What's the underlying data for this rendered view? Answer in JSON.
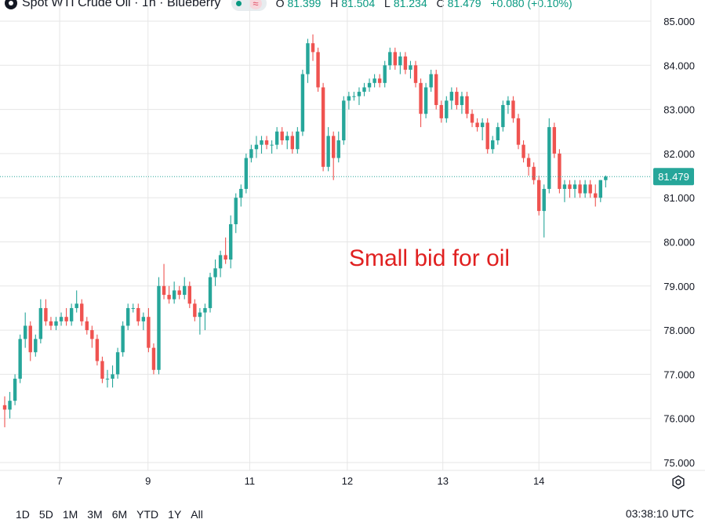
{
  "header": {
    "title": "Spot WTI Crude Oil · 1h · Blueberry",
    "status_icon": "market-open-dot",
    "o_label": "O",
    "o_value": "81.399",
    "h_label": "H",
    "h_value": "81.504",
    "l_label": "L",
    "l_value": "81.234",
    "c_label": "C",
    "c_value": "81.479",
    "change": "+0.080 (+0.10%)"
  },
  "colors": {
    "up": "#26a69a",
    "down": "#ef5350",
    "grid": "#e6e6e6",
    "price_tag": "#26a69a",
    "annotation": "#e02020"
  },
  "chart_data": {
    "type": "candlestick",
    "ylim": [
      74.8,
      85.3
    ],
    "y_ticks": [
      "75.000",
      "76.000",
      "77.000",
      "78.000",
      "79.000",
      "80.000",
      "81.000",
      "82.000",
      "83.000",
      "84.000",
      "85.000"
    ],
    "x_ticks": [
      {
        "label": "7",
        "pos": 10.7
      },
      {
        "label": "9",
        "pos": 27.9
      },
      {
        "label": "11",
        "pos": 47.7
      },
      {
        "label": "12",
        "pos": 66.7
      },
      {
        "label": "13",
        "pos": 85.3
      },
      {
        "label": "14",
        "pos": 104.0
      }
    ],
    "last_price": "81.479",
    "last_price_value": 81.479,
    "annotation": "Small bid for oil",
    "candles": [
      [
        76.3,
        76.5,
        75.8,
        76.2
      ],
      [
        76.2,
        76.6,
        76.0,
        76.4
      ],
      [
        76.4,
        77.0,
        76.3,
        76.9
      ],
      [
        76.9,
        77.9,
        76.8,
        77.8
      ],
      [
        77.8,
        78.4,
        77.6,
        78.1
      ],
      [
        78.1,
        78.2,
        77.3,
        77.5
      ],
      [
        77.5,
        77.9,
        77.4,
        77.8
      ],
      [
        77.8,
        78.7,
        77.7,
        78.5
      ],
      [
        78.5,
        78.7,
        78.1,
        78.2
      ],
      [
        78.2,
        78.3,
        78.0,
        78.1
      ],
      [
        78.1,
        78.3,
        78.0,
        78.2
      ],
      [
        78.2,
        78.4,
        78.1,
        78.3
      ],
      [
        78.3,
        78.5,
        78.1,
        78.2
      ],
      [
        78.2,
        78.6,
        78.1,
        78.5
      ],
      [
        78.5,
        78.9,
        78.4,
        78.6
      ],
      [
        78.6,
        78.7,
        78.1,
        78.2
      ],
      [
        78.2,
        78.3,
        77.9,
        78.0
      ],
      [
        78.0,
        78.1,
        77.6,
        77.8
      ],
      [
        77.8,
        77.9,
        77.2,
        77.3
      ],
      [
        77.3,
        77.4,
        76.8,
        76.9
      ],
      [
        76.9,
        77.1,
        76.7,
        76.9
      ],
      [
        76.9,
        77.2,
        76.7,
        77.0
      ],
      [
        77.0,
        77.6,
        76.9,
        77.5
      ],
      [
        77.5,
        78.2,
        77.4,
        78.1
      ],
      [
        78.1,
        78.6,
        78.0,
        78.5
      ],
      [
        78.5,
        78.6,
        78.4,
        78.5
      ],
      [
        78.5,
        78.6,
        78.1,
        78.2
      ],
      [
        78.2,
        78.4,
        78.0,
        78.3
      ],
      [
        78.3,
        78.5,
        77.5,
        77.6
      ],
      [
        77.6,
        77.7,
        77.0,
        77.1
      ],
      [
        77.1,
        79.2,
        77.0,
        79.0
      ],
      [
        79.0,
        79.5,
        78.7,
        78.8
      ],
      [
        78.8,
        79.0,
        78.6,
        78.7
      ],
      [
        78.7,
        79.1,
        78.6,
        78.9
      ],
      [
        78.9,
        79.0,
        78.7,
        78.8
      ],
      [
        78.8,
        79.2,
        78.7,
        79.0
      ],
      [
        79.0,
        79.1,
        78.5,
        78.6
      ],
      [
        78.6,
        78.7,
        78.2,
        78.3
      ],
      [
        78.3,
        78.5,
        77.9,
        78.4
      ],
      [
        78.4,
        78.6,
        78.0,
        78.5
      ],
      [
        78.5,
        79.3,
        78.4,
        79.2
      ],
      [
        79.2,
        79.6,
        79.0,
        79.4
      ],
      [
        79.4,
        79.8,
        79.2,
        79.7
      ],
      [
        79.7,
        80.1,
        79.5,
        79.6
      ],
      [
        79.6,
        80.6,
        79.4,
        80.4
      ],
      [
        80.4,
        81.1,
        80.2,
        81.0
      ],
      [
        81.0,
        81.3,
        80.8,
        81.2
      ],
      [
        81.2,
        82.0,
        81.1,
        81.9
      ],
      [
        81.9,
        82.2,
        81.8,
        82.1
      ],
      [
        82.1,
        82.4,
        81.9,
        82.2
      ],
      [
        82.2,
        82.4,
        82.0,
        82.3
      ],
      [
        82.3,
        82.4,
        82.1,
        82.2
      ],
      [
        82.2,
        82.3,
        82.0,
        82.2
      ],
      [
        82.2,
        82.6,
        82.1,
        82.5
      ],
      [
        82.5,
        82.6,
        82.2,
        82.3
      ],
      [
        82.3,
        82.5,
        82.1,
        82.4
      ],
      [
        82.4,
        82.5,
        82.0,
        82.1
      ],
      [
        82.1,
        82.6,
        82.0,
        82.5
      ],
      [
        82.5,
        83.9,
        82.4,
        83.8
      ],
      [
        83.8,
        84.6,
        83.6,
        84.5
      ],
      [
        84.5,
        84.7,
        84.1,
        84.3
      ],
      [
        84.3,
        84.4,
        83.4,
        83.5
      ],
      [
        83.5,
        83.6,
        81.6,
        81.7
      ],
      [
        81.7,
        82.6,
        81.6,
        82.4
      ],
      [
        82.4,
        82.5,
        81.4,
        81.9
      ],
      [
        81.9,
        82.5,
        81.8,
        82.3
      ],
      [
        82.3,
        83.3,
        82.2,
        83.2
      ],
      [
        83.2,
        83.4,
        83.0,
        83.3
      ],
      [
        83.3,
        83.4,
        83.2,
        83.3
      ],
      [
        83.3,
        83.5,
        83.1,
        83.4
      ],
      [
        83.4,
        83.6,
        83.3,
        83.5
      ],
      [
        83.5,
        83.7,
        83.4,
        83.6
      ],
      [
        83.6,
        83.8,
        83.5,
        83.7
      ],
      [
        83.7,
        83.8,
        83.5,
        83.6
      ],
      [
        83.6,
        84.1,
        83.5,
        84.0
      ],
      [
        84.0,
        84.4,
        83.9,
        84.3
      ],
      [
        84.3,
        84.4,
        83.9,
        84.0
      ],
      [
        84.0,
        84.3,
        83.8,
        84.2
      ],
      [
        84.2,
        84.3,
        83.8,
        83.9
      ],
      [
        83.9,
        84.1,
        83.7,
        84.0
      ],
      [
        84.0,
        84.1,
        83.5,
        83.6
      ],
      [
        83.6,
        83.7,
        82.6,
        82.9
      ],
      [
        82.9,
        83.6,
        82.8,
        83.5
      ],
      [
        83.5,
        83.9,
        83.4,
        83.8
      ],
      [
        83.8,
        83.9,
        83.0,
        83.1
      ],
      [
        83.1,
        83.2,
        82.7,
        82.8
      ],
      [
        82.8,
        83.3,
        82.7,
        83.2
      ],
      [
        83.2,
        83.5,
        83.0,
        83.4
      ],
      [
        83.4,
        83.5,
        83.0,
        83.1
      ],
      [
        83.1,
        83.4,
        82.9,
        83.3
      ],
      [
        83.3,
        83.4,
        82.8,
        82.9
      ],
      [
        82.9,
        83.0,
        82.6,
        82.7
      ],
      [
        82.7,
        82.8,
        82.5,
        82.6
      ],
      [
        82.6,
        82.8,
        82.3,
        82.7
      ],
      [
        82.7,
        82.8,
        82.0,
        82.1
      ],
      [
        82.1,
        82.4,
        82.0,
        82.3
      ],
      [
        82.3,
        82.7,
        82.2,
        82.6
      ],
      [
        82.6,
        83.2,
        82.5,
        83.1
      ],
      [
        83.1,
        83.3,
        82.9,
        83.2
      ],
      [
        83.2,
        83.3,
        82.7,
        82.8
      ],
      [
        82.8,
        82.9,
        82.1,
        82.2
      ],
      [
        82.2,
        82.3,
        81.8,
        81.9
      ],
      [
        81.9,
        82.0,
        81.5,
        81.7
      ],
      [
        81.7,
        81.8,
        81.3,
        81.4
      ],
      [
        81.4,
        81.5,
        80.6,
        80.7
      ],
      [
        80.7,
        81.3,
        80.1,
        81.2
      ],
      [
        81.2,
        82.8,
        81.1,
        82.6
      ],
      [
        82.6,
        82.7,
        81.9,
        82.0
      ],
      [
        82.0,
        82.1,
        81.1,
        81.2
      ],
      [
        81.2,
        81.4,
        80.9,
        81.3
      ],
      [
        81.3,
        81.4,
        81.0,
        81.2
      ],
      [
        81.2,
        81.4,
        81.0,
        81.3
      ],
      [
        81.3,
        81.4,
        81.0,
        81.1
      ],
      [
        81.1,
        81.4,
        81.0,
        81.3
      ],
      [
        81.3,
        81.4,
        81.0,
        81.1
      ],
      [
        81.1,
        81.3,
        80.8,
        81.0
      ],
      [
        81.0,
        81.4,
        80.9,
        81.4
      ],
      [
        81.399,
        81.504,
        81.234,
        81.479
      ]
    ]
  },
  "range_buttons": [
    "1D",
    "5D",
    "1M",
    "3M",
    "6M",
    "YTD",
    "1Y",
    "All"
  ],
  "clock": "03:38:10 UTC",
  "settings_icon": "settings-gear-icon"
}
